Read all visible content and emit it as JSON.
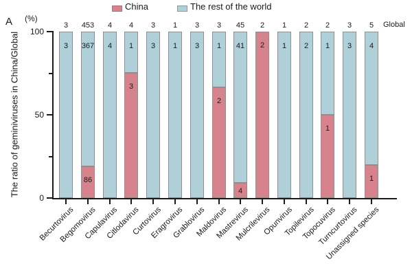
{
  "panel_label": "A",
  "legend": {
    "items": [
      {
        "label": "China",
        "color": "#d6838d",
        "border": "#bb6a76"
      },
      {
        "label": "The rest of the world",
        "color": "#afd0d9",
        "border": "#8a9aa1"
      }
    ]
  },
  "axes": {
    "y_unit": "(%)",
    "y_label": "The ratio of geminiviruses in China/Global",
    "y_ticks": [
      "100",
      "50",
      "0"
    ],
    "global_label": "Global"
  },
  "chart_data": {
    "type": "bar",
    "stacked": true,
    "normalized": "percent_of_total",
    "title": "",
    "xlabel": "",
    "ylabel": "The ratio of geminiviruses in China/Global (%)",
    "ylim": [
      0,
      100
    ],
    "y_major_ticks": [
      0,
      50,
      100
    ],
    "y_minor_ticks": [
      25,
      75
    ],
    "grid": false,
    "legend_position": "top",
    "categories": [
      "Becurtovirus",
      "Begomovirus",
      "Capulavirus",
      "Citlodavirus",
      "Curtovirus",
      "Eragrovirus",
      "Grablovirus",
      "Maldovirus",
      "Mastrevirus",
      "Mulcrilevirus",
      "Opunvirus",
      "Topilevirus",
      "Topocuvirus",
      "Turncurtovirus",
      "Unassigned species"
    ],
    "series": [
      {
        "name": "China",
        "color": "#d6838d",
        "values": [
          0,
          86,
          0,
          3,
          0,
          0,
          0,
          2,
          4,
          2,
          0,
          0,
          1,
          0,
          1
        ]
      },
      {
        "name": "The rest of the world",
        "color": "#afd0d9",
        "values": [
          3,
          367,
          4,
          1,
          3,
          1,
          3,
          1,
          41,
          0,
          1,
          2,
          1,
          3,
          4
        ]
      }
    ],
    "totals": [
      3,
      453,
      4,
      4,
      3,
      1,
      3,
      3,
      45,
      2,
      1,
      2,
      2,
      3,
      5
    ],
    "china_percent": [
      0,
      19.0,
      0,
      75.0,
      0,
      0,
      0,
      66.7,
      8.9,
      100.0,
      0,
      0,
      50.0,
      0,
      20.0
    ]
  }
}
